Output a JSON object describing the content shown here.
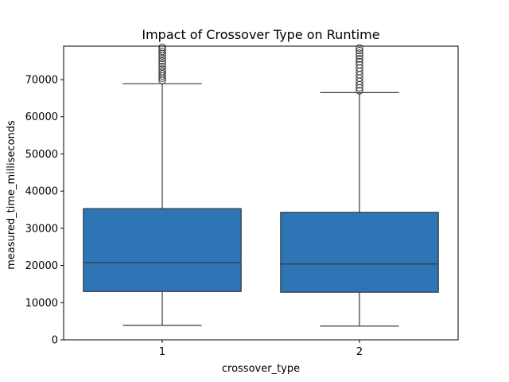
{
  "chart_data": {
    "type": "boxplot",
    "title": "Impact of Crossover Type on Runtime",
    "xlabel": "crossover_type",
    "ylabel": "measured_time_milliseconds",
    "ylim": [
      0,
      79000
    ],
    "yticks": [
      0,
      10000,
      20000,
      30000,
      40000,
      50000,
      60000,
      70000
    ],
    "categories": [
      "1",
      "2"
    ],
    "grid": false,
    "legend": "none",
    "box_color": "#2e75b6",
    "line_color": "#3a3a3a",
    "boxes": [
      {
        "category": "1",
        "whislo": 3900,
        "q1": 13000,
        "median": 20800,
        "q3": 35300,
        "whishi": 68900,
        "fliers": [
          69800,
          70400,
          71000,
          71600,
          72200,
          72800,
          73500,
          74300,
          75000,
          75700,
          76400,
          77000,
          77600,
          78200,
          78700
        ]
      },
      {
        "category": "2",
        "whislo": 3700,
        "q1": 12800,
        "median": 20400,
        "q3": 34300,
        "whishi": 66500,
        "fliers": [
          67000,
          67800,
          68600,
          69500,
          70400,
          71300,
          72200,
          73100,
          74000,
          74800,
          75600,
          76400,
          77100,
          77800,
          78500
        ]
      }
    ]
  }
}
